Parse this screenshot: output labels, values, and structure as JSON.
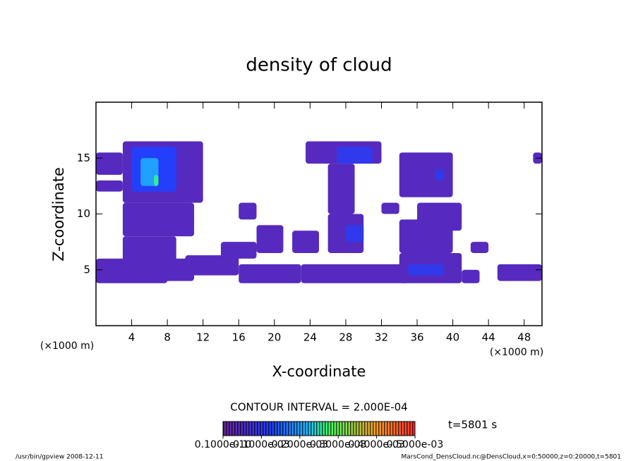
{
  "chart_data": {
    "type": "contour",
    "title": "density of cloud",
    "x_label": "X-coordinate",
    "y_label": "Z-coordinate",
    "x_unit_left": "(×1000 m)",
    "x_unit_right": "(×1000 m)",
    "xlim": [
      0,
      50
    ],
    "xticks": [
      4,
      8,
      12,
      16,
      20,
      24,
      28,
      32,
      36,
      40,
      44,
      48
    ],
    "ylim": [
      0,
      20
    ],
    "yticks": [
      5,
      10,
      15
    ],
    "contour_interval": "CONTOUR INTERVAL = 2.000E-04",
    "time_label": "t=5801 s",
    "footer_left": "/usr/bin/gpview  2008-12-11",
    "footer_right": "MarsCond_DensCloud.nc@DensCloud,x=0:50000,z=0:20000,t=5801",
    "colorbar_lim": [
      0,
      0.0005
    ],
    "colorbar_ticks": [
      {
        "value": 1e-11,
        "label": "0.1000e-10"
      },
      {
        "value": 0.0001,
        "label": "0.1000e-03"
      },
      {
        "value": 0.0002,
        "label": "0.2000e-03"
      },
      {
        "value": 0.0003,
        "label": "0.3000e-03"
      },
      {
        "value": 0.0004,
        "label": "0.4000e-03"
      },
      {
        "value": 0.0005,
        "label": "0.5000e-03"
      }
    ],
    "regions": [
      {
        "x": [
          0,
          3
        ],
        "z": [
          13.5,
          15.5
        ],
        "value": 4e-05
      },
      {
        "x": [
          0,
          3
        ],
        "z": [
          12,
          13
        ],
        "value": 4e-05
      },
      {
        "x": [
          3,
          12
        ],
        "z": [
          11,
          16.5
        ],
        "value": 4e-05
      },
      {
        "x": [
          3,
          11
        ],
        "z": [
          8,
          11
        ],
        "value": 4e-05
      },
      {
        "x": [
          3,
          9
        ],
        "z": [
          5.5,
          8
        ],
        "value": 4e-05
      },
      {
        "x": [
          0,
          11
        ],
        "z": [
          4,
          6
        ],
        "value": 4e-05
      },
      {
        "x": [
          0,
          8
        ],
        "z": [
          3.8,
          5
        ],
        "value": 4e-05
      },
      {
        "x": [
          10,
          16
        ],
        "z": [
          4.5,
          6.3
        ],
        "value": 4e-05
      },
      {
        "x": [
          14,
          18
        ],
        "z": [
          6,
          7.5
        ],
        "value": 4e-05
      },
      {
        "x": [
          16,
          23
        ],
        "z": [
          3.8,
          5.5
        ],
        "value": 4e-05
      },
      {
        "x": [
          18,
          21
        ],
        "z": [
          6.5,
          9
        ],
        "value": 4e-05
      },
      {
        "x": [
          16,
          18
        ],
        "z": [
          9.5,
          11
        ],
        "value": 4e-05
      },
      {
        "x": [
          22,
          25
        ],
        "z": [
          6.5,
          8.5
        ],
        "value": 4e-05
      },
      {
        "x": [
          23,
          35
        ],
        "z": [
          3.8,
          5.5
        ],
        "value": 4e-05
      },
      {
        "x": [
          23.5,
          32
        ],
        "z": [
          14.5,
          16.5
        ],
        "value": 4e-05
      },
      {
        "x": [
          26,
          29
        ],
        "z": [
          10,
          14.5
        ],
        "value": 4e-05
      },
      {
        "x": [
          26,
          30
        ],
        "z": [
          6.5,
          10
        ],
        "value": 4e-05
      },
      {
        "x": [
          32,
          34
        ],
        "z": [
          10,
          11
        ],
        "value": 4e-05
      },
      {
        "x": [
          34,
          41
        ],
        "z": [
          3.8,
          6.5
        ],
        "value": 4e-05
      },
      {
        "x": [
          34,
          40
        ],
        "z": [
          6.5,
          9.5
        ],
        "value": 4e-05
      },
      {
        "x": [
          36,
          41
        ],
        "z": [
          8.5,
          11
        ],
        "value": 4e-05
      },
      {
        "x": [
          34,
          40
        ],
        "z": [
          11.5,
          15.5
        ],
        "value": 4e-05
      },
      {
        "x": [
          42,
          44
        ],
        "z": [
          6.5,
          7.5
        ],
        "value": 4e-05
      },
      {
        "x": [
          41,
          43
        ],
        "z": [
          3.8,
          5
        ],
        "value": 4e-05
      },
      {
        "x": [
          45,
          50
        ],
        "z": [
          4,
          5.5
        ],
        "value": 4e-05
      },
      {
        "x": [
          49,
          50
        ],
        "z": [
          14.5,
          15.5
        ],
        "value": 4e-05
      },
      {
        "x": [
          4,
          9
        ],
        "z": [
          12,
          16
        ],
        "value": 0.00012
      },
      {
        "x": [
          27,
          31
        ],
        "z": [
          14.5,
          16
        ],
        "value": 0.0001
      },
      {
        "x": [
          28,
          30
        ],
        "z": [
          7.5,
          9
        ],
        "value": 0.0001
      },
      {
        "x": [
          35,
          39
        ],
        "z": [
          4.5,
          5.5
        ],
        "value": 0.0001
      },
      {
        "x": [
          38,
          39
        ],
        "z": [
          13,
          14
        ],
        "value": 0.0001
      },
      {
        "x": [
          5,
          7
        ],
        "z": [
          12.5,
          15
        ],
        "value": 0.0002
      },
      {
        "x": [
          6.5,
          7
        ],
        "z": [
          12.5,
          13.5
        ],
        "value": 0.00026
      }
    ]
  }
}
